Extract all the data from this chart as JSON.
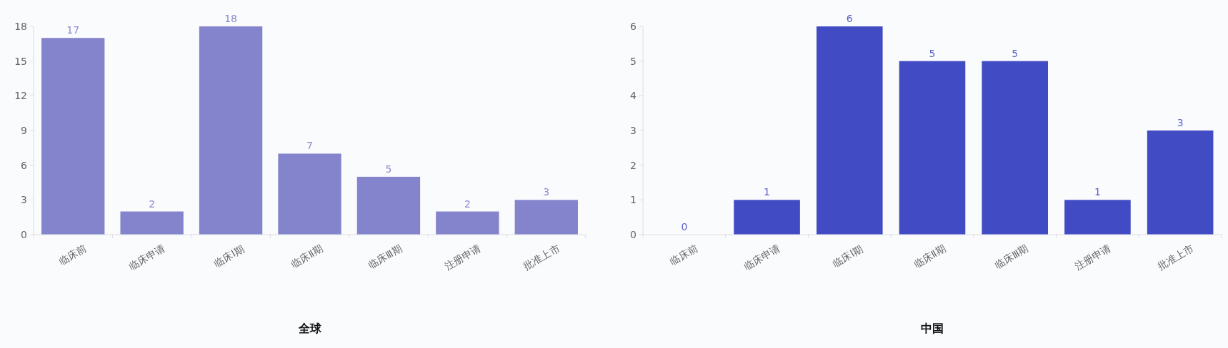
{
  "chart_data": [
    {
      "type": "bar",
      "title": "全球",
      "categories": [
        "临床前",
        "临床申请",
        "临床Ⅰ期",
        "临床Ⅱ期",
        "临床Ⅲ期",
        "注册申请",
        "批准上市"
      ],
      "values": [
        17,
        2,
        18,
        7,
        5,
        2,
        3
      ],
      "color": "#8484cc",
      "ylim": [
        0,
        18
      ],
      "yticks": [
        0,
        3,
        6,
        9,
        12,
        15,
        18
      ],
      "data_labels": true,
      "grid": false
    },
    {
      "type": "bar",
      "title": "中国",
      "categories": [
        "临床前",
        "临床申请",
        "临床Ⅰ期",
        "临床Ⅱ期",
        "临床Ⅲ期",
        "注册申请",
        "批准上市"
      ],
      "values": [
        0,
        1,
        6,
        5,
        5,
        1,
        3
      ],
      "color": "#414bc4",
      "ylim": [
        0,
        6
      ],
      "yticks": [
        0,
        1,
        2,
        3,
        4,
        5,
        6
      ],
      "data_labels": true,
      "grid": false
    }
  ]
}
